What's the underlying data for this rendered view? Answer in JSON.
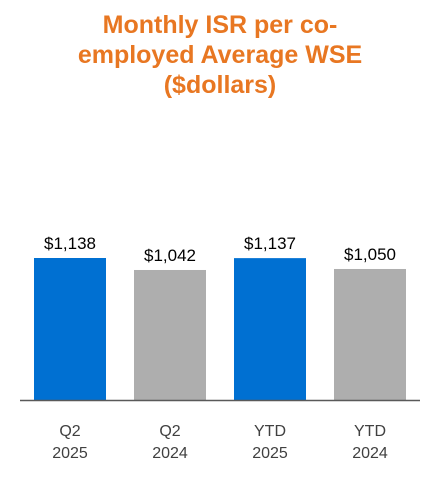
{
  "title_lines": [
    "Monthly ISR per co-",
    "employed Average WSE",
    "($dollars)"
  ],
  "colors": {
    "title": "#e87722",
    "current": "#0070d2",
    "prior": "#aeaeae",
    "axis": "#595959",
    "text": "#000000",
    "tick_text": "#404040"
  },
  "chart_data": {
    "type": "bar",
    "title": "Monthly ISR per co-employed Average WSE ($dollars)",
    "categories": [
      [
        "Q2",
        "2025"
      ],
      [
        "Q2",
        "2024"
      ],
      [
        "YTD",
        "2025"
      ],
      [
        "YTD",
        "2024"
      ]
    ],
    "values": [
      1138,
      1042,
      1137,
      1050
    ],
    "data_labels": [
      "$1,138",
      "$1,042",
      "$1,137",
      "$1,050"
    ],
    "bar_colors": [
      "#0070d2",
      "#aeaeae",
      "#0070d2",
      "#aeaeae"
    ],
    "xlabel": "",
    "ylabel": "",
    "ylim": [
      0,
      1138
    ],
    "grid": false,
    "legend": "none"
  }
}
